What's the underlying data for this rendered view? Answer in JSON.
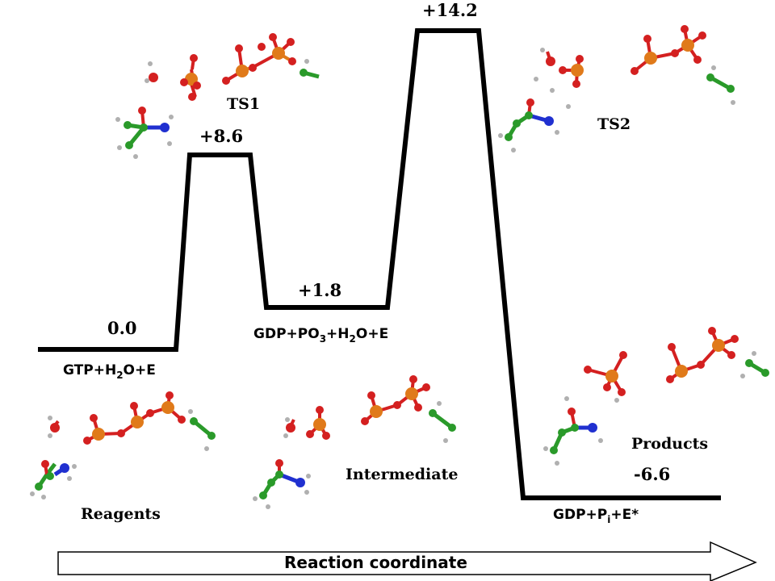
{
  "diagram": {
    "states": [
      {
        "id": "reagents",
        "energy_label": "0.0",
        "formula_parts": [
          "GTP+H",
          "2",
          "O+E"
        ],
        "molecule_label": "Reagents"
      },
      {
        "id": "ts1",
        "energy_label": "+8.6",
        "molecule_label": "TS1"
      },
      {
        "id": "intermediate",
        "energy_label": "+1.8",
        "formula_parts": [
          "GDP+PO",
          "3",
          "+H",
          "2",
          "O+E"
        ],
        "molecule_label": "Intermediate"
      },
      {
        "id": "ts2",
        "energy_label": "+14.2",
        "molecule_label": "TS2"
      },
      {
        "id": "products",
        "energy_label": "-6.6",
        "formula_parts": [
          "GDP+P",
          "i",
          "+E*"
        ],
        "molecule_label": "Products"
      }
    ],
    "axis_label": "Reaction coordinate",
    "colors": {
      "phosphorus": "#e07a1a",
      "oxygen": "#d42020",
      "carbon": "#2a9a2a",
      "nitrogen": "#2030d0",
      "hydrogen": "#b0b0b0",
      "profile_line": "#000000"
    }
  }
}
